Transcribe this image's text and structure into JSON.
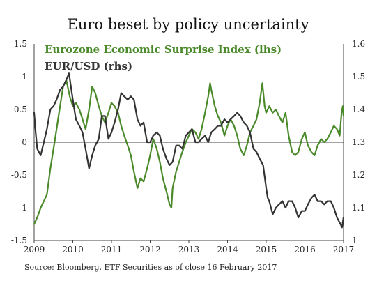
{
  "chart_data": {
    "type": "line",
    "title": "Euro beset by policy uncertainty",
    "x_ticks": [
      "2009",
      "2010",
      "2011",
      "2012",
      "2013",
      "2014",
      "2015",
      "2016",
      "2017"
    ],
    "xlim": [
      2009.0,
      2017.0
    ],
    "y_left": {
      "ylim": [
        -1.5,
        1.5
      ],
      "ticks": [
        -1.5,
        -1,
        -0.5,
        0,
        0.5,
        1,
        1.5
      ],
      "tick_labels": [
        "-1.5",
        "-1",
        "-0.5",
        "0",
        "0.5",
        "1",
        "1.5"
      ]
    },
    "y_right": {
      "ylim": [
        1.0,
        1.6
      ],
      "ticks": [
        1.0,
        1.1,
        1.2,
        1.3,
        1.4,
        1.5,
        1.6
      ],
      "tick_labels": [
        "1",
        "1.1",
        "1.2",
        "1.3",
        "1.4",
        "1.5",
        "1.6"
      ]
    },
    "zero_line": true,
    "grid": false,
    "legend_position": "top-left",
    "series": [
      {
        "name": "Eurozone Economic Surprise Index (lhs)",
        "axis": "left",
        "color": "#4a8a2a",
        "points": [
          [
            2009.0,
            -1.25
          ],
          [
            2009.08,
            -1.15
          ],
          [
            2009.17,
            -1.0
          ],
          [
            2009.25,
            -0.9
          ],
          [
            2009.33,
            -0.8
          ],
          [
            2009.42,
            -0.4
          ],
          [
            2009.5,
            -0.1
          ],
          [
            2009.58,
            0.2
          ],
          [
            2009.67,
            0.55
          ],
          [
            2009.75,
            0.85
          ],
          [
            2009.83,
            0.95
          ],
          [
            2009.92,
            0.7
          ],
          [
            2010.0,
            0.55
          ],
          [
            2010.08,
            0.6
          ],
          [
            2010.17,
            0.5
          ],
          [
            2010.25,
            0.35
          ],
          [
            2010.33,
            0.2
          ],
          [
            2010.42,
            0.5
          ],
          [
            2010.5,
            0.85
          ],
          [
            2010.58,
            0.75
          ],
          [
            2010.67,
            0.55
          ],
          [
            2010.75,
            0.4
          ],
          [
            2010.83,
            0.3
          ],
          [
            2010.92,
            0.45
          ],
          [
            2011.0,
            0.6
          ],
          [
            2011.08,
            0.55
          ],
          [
            2011.17,
            0.45
          ],
          [
            2011.25,
            0.25
          ],
          [
            2011.33,
            0.1
          ],
          [
            2011.42,
            -0.05
          ],
          [
            2011.5,
            -0.2
          ],
          [
            2011.58,
            -0.45
          ],
          [
            2011.67,
            -0.7
          ],
          [
            2011.75,
            -0.55
          ],
          [
            2011.83,
            -0.6
          ],
          [
            2011.92,
            -0.4
          ],
          [
            2012.0,
            -0.2
          ],
          [
            2012.08,
            0.05
          ],
          [
            2012.17,
            -0.1
          ],
          [
            2012.25,
            -0.3
          ],
          [
            2012.33,
            -0.55
          ],
          [
            2012.42,
            -0.75
          ],
          [
            2012.5,
            -0.95
          ],
          [
            2012.55,
            -1.0
          ],
          [
            2012.58,
            -0.7
          ],
          [
            2012.67,
            -0.45
          ],
          [
            2012.75,
            -0.3
          ],
          [
            2012.83,
            -0.15
          ],
          [
            2012.92,
            0.0
          ],
          [
            2013.0,
            0.1
          ],
          [
            2013.08,
            0.2
          ],
          [
            2013.17,
            0.15
          ],
          [
            2013.25,
            0.05
          ],
          [
            2013.33,
            0.2
          ],
          [
            2013.42,
            0.45
          ],
          [
            2013.5,
            0.7
          ],
          [
            2013.55,
            0.9
          ],
          [
            2013.58,
            0.8
          ],
          [
            2013.67,
            0.55
          ],
          [
            2013.75,
            0.4
          ],
          [
            2013.83,
            0.3
          ],
          [
            2013.92,
            0.1
          ],
          [
            2014.0,
            0.25
          ],
          [
            2014.08,
            0.35
          ],
          [
            2014.17,
            0.25
          ],
          [
            2014.25,
            0.1
          ],
          [
            2014.33,
            -0.1
          ],
          [
            2014.42,
            -0.2
          ],
          [
            2014.5,
            -0.05
          ],
          [
            2014.58,
            0.15
          ],
          [
            2014.67,
            0.25
          ],
          [
            2014.75,
            0.35
          ],
          [
            2014.83,
            0.6
          ],
          [
            2014.9,
            0.9
          ],
          [
            2014.96,
            0.55
          ],
          [
            2015.0,
            0.45
          ],
          [
            2015.08,
            0.55
          ],
          [
            2015.17,
            0.45
          ],
          [
            2015.25,
            0.5
          ],
          [
            2015.33,
            0.4
          ],
          [
            2015.42,
            0.3
          ],
          [
            2015.5,
            0.45
          ],
          [
            2015.58,
            0.1
          ],
          [
            2015.67,
            -0.15
          ],
          [
            2015.75,
            -0.2
          ],
          [
            2015.83,
            -0.15
          ],
          [
            2015.92,
            0.05
          ],
          [
            2016.0,
            0.15
          ],
          [
            2016.08,
            -0.05
          ],
          [
            2016.17,
            -0.15
          ],
          [
            2016.25,
            -0.2
          ],
          [
            2016.33,
            -0.05
          ],
          [
            2016.42,
            0.05
          ],
          [
            2016.5,
            0.0
          ],
          [
            2016.58,
            0.05
          ],
          [
            2016.67,
            0.15
          ],
          [
            2016.75,
            0.25
          ],
          [
            2016.83,
            0.2
          ],
          [
            2016.9,
            0.1
          ],
          [
            2016.95,
            0.45
          ],
          [
            2016.98,
            0.55
          ],
          [
            2017.0,
            0.4
          ]
        ]
      },
      {
        "name": "EUR/USD (rhs)",
        "axis": "right",
        "color": "#333333",
        "points": [
          [
            2009.0,
            1.39
          ],
          [
            2009.04,
            1.33
          ],
          [
            2009.08,
            1.28
          ],
          [
            2009.17,
            1.26
          ],
          [
            2009.25,
            1.3
          ],
          [
            2009.33,
            1.34
          ],
          [
            2009.42,
            1.4
          ],
          [
            2009.5,
            1.41
          ],
          [
            2009.58,
            1.43
          ],
          [
            2009.67,
            1.46
          ],
          [
            2009.75,
            1.47
          ],
          [
            2009.83,
            1.49
          ],
          [
            2009.9,
            1.51
          ],
          [
            2010.0,
            1.43
          ],
          [
            2010.08,
            1.37
          ],
          [
            2010.17,
            1.35
          ],
          [
            2010.25,
            1.33
          ],
          [
            2010.33,
            1.28
          ],
          [
            2010.42,
            1.22
          ],
          [
            2010.5,
            1.26
          ],
          [
            2010.58,
            1.29
          ],
          [
            2010.67,
            1.31
          ],
          [
            2010.75,
            1.38
          ],
          [
            2010.83,
            1.38
          ],
          [
            2010.92,
            1.31
          ],
          [
            2011.0,
            1.33
          ],
          [
            2011.08,
            1.36
          ],
          [
            2011.17,
            1.4
          ],
          [
            2011.25,
            1.45
          ],
          [
            2011.33,
            1.44
          ],
          [
            2011.42,
            1.43
          ],
          [
            2011.5,
            1.44
          ],
          [
            2011.58,
            1.43
          ],
          [
            2011.67,
            1.37
          ],
          [
            2011.75,
            1.35
          ],
          [
            2011.83,
            1.36
          ],
          [
            2011.92,
            1.3
          ],
          [
            2012.0,
            1.3
          ],
          [
            2012.08,
            1.32
          ],
          [
            2012.17,
            1.33
          ],
          [
            2012.25,
            1.32
          ],
          [
            2012.33,
            1.28
          ],
          [
            2012.42,
            1.25
          ],
          [
            2012.5,
            1.23
          ],
          [
            2012.58,
            1.24
          ],
          [
            2012.67,
            1.29
          ],
          [
            2012.75,
            1.29
          ],
          [
            2012.83,
            1.28
          ],
          [
            2012.92,
            1.32
          ],
          [
            2013.0,
            1.33
          ],
          [
            2013.08,
            1.34
          ],
          [
            2013.17,
            1.3
          ],
          [
            2013.25,
            1.3
          ],
          [
            2013.33,
            1.31
          ],
          [
            2013.42,
            1.32
          ],
          [
            2013.5,
            1.3
          ],
          [
            2013.58,
            1.33
          ],
          [
            2013.67,
            1.34
          ],
          [
            2013.75,
            1.35
          ],
          [
            2013.83,
            1.35
          ],
          [
            2013.92,
            1.37
          ],
          [
            2014.0,
            1.36
          ],
          [
            2014.08,
            1.37
          ],
          [
            2014.17,
            1.38
          ],
          [
            2014.25,
            1.39
          ],
          [
            2014.33,
            1.38
          ],
          [
            2014.42,
            1.36
          ],
          [
            2014.5,
            1.35
          ],
          [
            2014.58,
            1.33
          ],
          [
            2014.67,
            1.28
          ],
          [
            2014.75,
            1.27
          ],
          [
            2014.83,
            1.25
          ],
          [
            2014.92,
            1.23
          ],
          [
            2015.0,
            1.16
          ],
          [
            2015.04,
            1.13
          ],
          [
            2015.08,
            1.12
          ],
          [
            2015.17,
            1.08
          ],
          [
            2015.25,
            1.1
          ],
          [
            2015.33,
            1.11
          ],
          [
            2015.42,
            1.12
          ],
          [
            2015.5,
            1.1
          ],
          [
            2015.58,
            1.12
          ],
          [
            2015.67,
            1.12
          ],
          [
            2015.75,
            1.1
          ],
          [
            2015.83,
            1.07
          ],
          [
            2015.92,
            1.09
          ],
          [
            2016.0,
            1.09
          ],
          [
            2016.08,
            1.11
          ],
          [
            2016.17,
            1.13
          ],
          [
            2016.25,
            1.14
          ],
          [
            2016.33,
            1.12
          ],
          [
            2016.42,
            1.12
          ],
          [
            2016.5,
            1.11
          ],
          [
            2016.58,
            1.12
          ],
          [
            2016.67,
            1.12
          ],
          [
            2016.75,
            1.1
          ],
          [
            2016.83,
            1.07
          ],
          [
            2016.92,
            1.05
          ],
          [
            2016.96,
            1.04
          ],
          [
            2017.0,
            1.07
          ]
        ]
      }
    ],
    "source": "Source: Bloomberg, ETF Securities as of close 16 February 2017"
  }
}
